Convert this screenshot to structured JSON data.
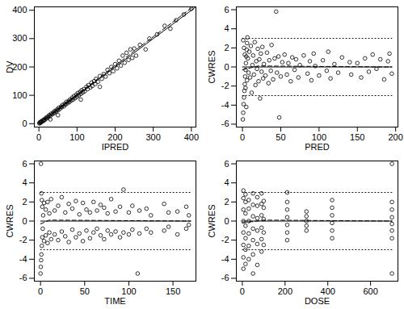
{
  "chart_data": [
    {
      "type": "scatter",
      "x_label": "IPRED",
      "y_label": "DV",
      "marker": "circle",
      "color": "#000000",
      "xlim": [
        -12,
        412
      ],
      "ylim": [
        -12,
        412
      ],
      "xticks": [
        0,
        100,
        200,
        300,
        400
      ],
      "yticks": [
        0,
        100,
        200,
        300,
        400
      ],
      "x": [
        1,
        2,
        3,
        5,
        6,
        8,
        10,
        12,
        14,
        15,
        18,
        20,
        22,
        25,
        27,
        30,
        32,
        35,
        38,
        40,
        42,
        45,
        48,
        50,
        52,
        55,
        58,
        60,
        62,
        65,
        68,
        70,
        72,
        75,
        78,
        80,
        82,
        85,
        88,
        90,
        92,
        95,
        98,
        100,
        102,
        105,
        108,
        110,
        112,
        115,
        118,
        120,
        125,
        128,
        130,
        135,
        138,
        140,
        145,
        148,
        150,
        155,
        160,
        165,
        170,
        175,
        180,
        185,
        190,
        195,
        200,
        205,
        210,
        215,
        220,
        225,
        230,
        235,
        240,
        245,
        250,
        255,
        265,
        280,
        290,
        310,
        330,
        345,
        360,
        380,
        400,
        30,
        50,
        160,
        110
      ],
      "y": [
        2,
        1,
        5,
        4,
        8,
        7,
        12,
        10,
        15,
        13,
        20,
        18,
        24,
        23,
        30,
        28,
        35,
        33,
        40,
        37,
        45,
        43,
        50,
        47,
        56,
        52,
        60,
        58,
        66,
        61,
        70,
        67,
        77,
        72,
        80,
        76,
        86,
        82,
        92,
        85,
        97,
        90,
        102,
        95,
        108,
        100,
        112,
        105,
        118,
        110,
        122,
        114,
        130,
        122,
        136,
        128,
        145,
        133,
        150,
        140,
        158,
        148,
        168,
        158,
        175,
        166,
        190,
        178,
        200,
        185,
        210,
        195,
        222,
        205,
        240,
        215,
        250,
        225,
        262,
        232,
        265,
        240,
        278,
        262,
        300,
        315,
        345,
        335,
        365,
        385,
        405,
        15,
        30,
        130,
        85
      ],
      "lines": [
        {
          "x": [
            0,
            410
          ],
          "y": [
            0,
            410
          ],
          "line_style": "solid"
        },
        {
          "x": [
            0,
            200,
            410
          ],
          "y": [
            0,
            205,
            418
          ],
          "line_style": "dashed"
        }
      ]
    },
    {
      "type": "scatter",
      "x_label": "PRED",
      "y_label": "CWRES",
      "marker": "circle",
      "color": "#000000",
      "xlim": [
        -8,
        203
      ],
      "ylim": [
        -6.3,
        6.3
      ],
      "xticks": [
        0,
        50,
        100,
        150,
        200
      ],
      "yticks": [
        -6,
        -4,
        -2,
        0,
        2,
        4,
        6
      ],
      "x": [
        0.5,
        1,
        1.5,
        2,
        2.5,
        3,
        3.5,
        4,
        4.5,
        5,
        5.5,
        6,
        6.5,
        1,
        2,
        3,
        4,
        5,
        6,
        7,
        8,
        9,
        10,
        11,
        12,
        13,
        14,
        15,
        16,
        17,
        18,
        19,
        20,
        21,
        22,
        23,
        24,
        25,
        26,
        27,
        28,
        30,
        32,
        34,
        35,
        37,
        38,
        40,
        42,
        44,
        45,
        47,
        48,
        50,
        52,
        55,
        58,
        60,
        63,
        65,
        68,
        70,
        73,
        75,
        80,
        85,
        88,
        90,
        93,
        95,
        100,
        105,
        110,
        112,
        115,
        120,
        125,
        130,
        140,
        142,
        150,
        155,
        160,
        165,
        170,
        175,
        180,
        185,
        190,
        195,
        192
      ],
      "y": [
        -5.5,
        -4.8,
        -3.9,
        -3.2,
        -2.5,
        -1.8,
        -1,
        -0.3,
        0.4,
        1.1,
        1.8,
        2.5,
        3.1,
        2.8,
        2,
        1.3,
        -2.2,
        -4.2,
        -1.4,
        0.9,
        -0.6,
        1.6,
        -1.1,
        2.2,
        -2.7,
        0.2,
        1.2,
        -0.8,
        2.6,
        -1.9,
        0.6,
        -0.2,
        1.9,
        -1.5,
        0.8,
        -3.3,
        1.4,
        -0.5,
        2.1,
        -1.2,
        0.3,
        -0.9,
        1.5,
        -1.7,
        0.7,
        -0.4,
        2.3,
        -1.3,
        0.9,
        5.8,
        -0.6,
        1.1,
        -5.3,
        -1,
        0.5,
        1.3,
        -0.8,
        0.4,
        -1.5,
        1,
        -0.3,
        0.8,
        -1.1,
        0.2,
        1.2,
        -0.7,
        0.6,
        -1.4,
        1.4,
        0.1,
        -0.9,
        0.7,
        -0.4,
        1.6,
        -1.2,
        0.3,
        -0.6,
        1,
        0.5,
        -0.8,
        0.4,
        -1.1,
        0.9,
        -0.5,
        1.3,
        -0.2,
        0.8,
        -1.3,
        0.6,
        -0.7,
        1.4
      ],
      "lines": [
        {
          "x": [
            0,
            195
          ],
          "y": [
            0,
            0
          ],
          "line_style": "solid"
        },
        {
          "x": [
            0,
            195
          ],
          "y": [
            3,
            3
          ],
          "line_style": "dotted"
        },
        {
          "x": [
            0,
            195
          ],
          "y": [
            -3,
            -3
          ],
          "line_style": "dotted"
        },
        {
          "x": [
            0,
            20,
            195
          ],
          "y": [
            -0.3,
            0.1,
            0
          ],
          "line_style": "dashed"
        }
      ]
    },
    {
      "type": "scatter",
      "x_label": "TIME",
      "y_label": "CWRES",
      "marker": "circle",
      "color": "#000000",
      "xlim": [
        -7,
        176
      ],
      "ylim": [
        -6.3,
        6.3
      ],
      "xticks": [
        0,
        50,
        100,
        150
      ],
      "yticks": [
        -6,
        -4,
        -2,
        0,
        2,
        4,
        6
      ],
      "x": [
        0,
        0.3,
        0.5,
        0.7,
        1,
        1,
        1.5,
        1.5,
        2,
        2,
        2.5,
        3,
        4,
        4,
        6,
        6,
        8,
        8,
        10,
        10,
        12,
        12,
        16,
        16,
        20,
        20,
        24,
        24,
        28,
        28,
        32,
        32,
        36,
        36,
        40,
        40,
        44,
        44,
        48,
        48,
        52,
        52,
        56,
        56,
        60,
        60,
        64,
        64,
        68,
        68,
        72,
        72,
        76,
        76,
        80,
        80,
        85,
        85,
        90,
        90,
        94,
        94,
        100,
        100,
        104,
        104,
        110,
        112,
        112,
        120,
        120,
        125,
        125,
        140,
        140,
        145,
        145,
        155,
        155,
        165,
        165,
        168,
        168
      ],
      "y": [
        -5.5,
        -4.8,
        6,
        -4.1,
        -3.5,
        2.9,
        -2.6,
        2.2,
        -1.7,
        1.5,
        -0.8,
        0.6,
        -2.1,
        1.9,
        -1.5,
        1.2,
        -2.3,
        2,
        -1.2,
        0.8,
        -1.9,
        2.3,
        -1.4,
        1.1,
        -2,
        1.6,
        -1.1,
        2.5,
        -1.6,
        0.9,
        -2.2,
        1.8,
        -0.9,
        1.3,
        -1.7,
        2.1,
        -1.3,
        0.7,
        -2.1,
        1.9,
        -1,
        1.2,
        -1.8,
        0.9,
        -1.2,
        2,
        -0.8,
        1.1,
        -1.5,
        1.7,
        -1.9,
        1.4,
        -1,
        0.8,
        -1.4,
        2.3,
        -1.1,
        1,
        -1.7,
        1.5,
        -1.2,
        3.3,
        -1.4,
        0.9,
        -0.9,
        1.6,
        -5.5,
        -1.3,
        1.1,
        -0.8,
        1.3,
        -1.2,
        0.6,
        -1,
        1.8,
        -0.6,
        0.9,
        -1.4,
        1,
        -0.8,
        1.5,
        -0.4,
        0.6
      ],
      "lines": [
        {
          "x": [
            0,
            170
          ],
          "y": [
            0,
            0
          ],
          "line_style": "solid"
        },
        {
          "x": [
            0,
            170
          ],
          "y": [
            3,
            3
          ],
          "line_style": "dotted"
        },
        {
          "x": [
            0,
            170
          ],
          "y": [
            -3,
            -3
          ],
          "line_style": "dotted"
        },
        {
          "x": [
            0,
            10,
            170
          ],
          "y": [
            -0.3,
            0.1,
            0
          ],
          "line_style": "dashed"
        }
      ]
    },
    {
      "type": "scatter",
      "x_label": "DOSE",
      "y_label": "CWRES",
      "marker": "circle",
      "color": "#000000",
      "xlim": [
        -28,
        728
      ],
      "ylim": [
        -6.3,
        6.3
      ],
      "xticks": [
        0,
        200,
        400,
        600
      ],
      "yticks": [
        -6,
        -4,
        -2,
        0,
        2,
        4,
        6
      ],
      "x": [
        5,
        5,
        5,
        5,
        5,
        5,
        5,
        5,
        15,
        15,
        15,
        15,
        15,
        15,
        15,
        30,
        30,
        30,
        30,
        30,
        30,
        50,
        50,
        50,
        50,
        50,
        50,
        50,
        70,
        70,
        70,
        70,
        70,
        70,
        90,
        90,
        90,
        90,
        90,
        90,
        100,
        100,
        100,
        100,
        100,
        210,
        210,
        210,
        210,
        210,
        210,
        210,
        300,
        300,
        300,
        300,
        300,
        420,
        420,
        420,
        420,
        420,
        420,
        700,
        700,
        700,
        700,
        700,
        700,
        700,
        700
      ],
      "y": [
        -5,
        -3.8,
        -2.5,
        -1.2,
        0,
        1.2,
        2.4,
        3.2,
        -4.5,
        -3,
        -1.8,
        -0.5,
        0.8,
        2,
        2.8,
        -4,
        -2.6,
        -1.3,
        0,
        1.3,
        2.2,
        -5.5,
        -3.5,
        -2,
        -0.8,
        0.5,
        1.7,
        2.9,
        -4.6,
        -2.4,
        -1,
        0.3,
        1.6,
        2.5,
        -3.2,
        -1.9,
        -0.7,
        0.6,
        1.8,
        2.9,
        -2.5,
        -1.2,
        0.2,
        1.4,
        2.1,
        -2,
        -1.2,
        -0.4,
        0.4,
        1.2,
        2,
        3,
        -1,
        -0.5,
        0,
        0.5,
        1,
        -1.8,
        -1,
        -0.2,
        0.6,
        1.4,
        2.2,
        -5.5,
        -1.8,
        -1,
        -0.3,
        0.4,
        1.2,
        2,
        6
      ],
      "lines": [
        {
          "x": [
            0,
            700
          ],
          "y": [
            0,
            0
          ],
          "line_style": "solid"
        },
        {
          "x": [
            0,
            700
          ],
          "y": [
            3,
            3
          ],
          "line_style": "dotted"
        },
        {
          "x": [
            0,
            700
          ],
          "y": [
            -3,
            -3
          ],
          "line_style": "dotted"
        },
        {
          "x": [
            0,
            100,
            700
          ],
          "y": [
            -0.2,
            0.1,
            0
          ],
          "line_style": "dashed"
        }
      ]
    }
  ]
}
